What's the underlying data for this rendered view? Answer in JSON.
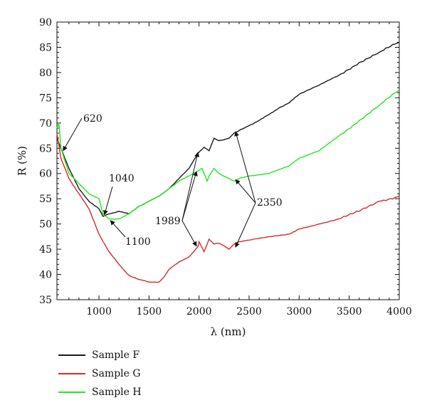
{
  "chart_data": {
    "type": "line",
    "xlabel": "λ (nm)",
    "ylabel": "R (%)",
    "xlim": [
      580,
      4000
    ],
    "ylim": [
      35,
      90
    ],
    "xticks": [
      "1000",
      "1500",
      "2000",
      "2500",
      "3000",
      "3500",
      "4000"
    ],
    "yticks": [
      "35",
      "40",
      "45",
      "50",
      "55",
      "60",
      "65",
      "70",
      "75",
      "80",
      "85",
      "90"
    ],
    "grid": false,
    "legend_position": "below",
    "series": [
      {
        "name": "Sample F",
        "color": "#1a1a1a",
        "x": [
          580,
          620,
          700,
          800,
          900,
          1000,
          1040,
          1100,
          1200,
          1300,
          1400,
          1500,
          1600,
          1700,
          1800,
          1900,
          1989,
          2050,
          2100,
          2150,
          2200,
          2300,
          2350,
          2400,
          2500,
          2600,
          2700,
          2800,
          2900,
          3000,
          3200,
          3400,
          3600,
          3800,
          4000
        ],
        "y": [
          67,
          65,
          61,
          57,
          54.5,
          53,
          51.5,
          52,
          52.5,
          52,
          53.5,
          54.5,
          55.5,
          57,
          59,
          61,
          64,
          65.2,
          64.5,
          67,
          66.5,
          67,
          68,
          68.5,
          69.5,
          70.5,
          71.7,
          73,
          74,
          75.7,
          77.5,
          79.5,
          82,
          84,
          86
        ]
      },
      {
        "name": "Sample G",
        "color": "#d42a2a",
        "x": [
          580,
          620,
          700,
          800,
          900,
          1000,
          1100,
          1200,
          1300,
          1400,
          1500,
          1600,
          1650,
          1700,
          1800,
          1900,
          1989,
          2000,
          2050,
          2100,
          2150,
          2200,
          2300,
          2350,
          2400,
          2500,
          2700,
          2900,
          3000,
          3200,
          3400,
          3600,
          3800,
          4000
        ],
        "y": [
          68,
          63,
          59,
          56,
          53,
          48,
          44.5,
          42,
          39.8,
          39,
          38.5,
          38.5,
          39.5,
          41,
          42.5,
          43.5,
          45.5,
          46.5,
          44.5,
          47,
          46,
          46.2,
          45,
          46,
          46.5,
          46.8,
          47.5,
          48,
          49,
          50,
          51,
          52.5,
          54.5,
          55.5
        ]
      },
      {
        "name": "Sample H",
        "color": "#22e622",
        "x": [
          580,
          600,
          620,
          700,
          800,
          900,
          1000,
          1040,
          1100,
          1200,
          1300,
          1400,
          1500,
          1600,
          1700,
          1800,
          1900,
          1989,
          2030,
          2080,
          2100,
          2150,
          2200,
          2300,
          2350,
          2400,
          2500,
          2700,
          2900,
          3000,
          3200,
          3400,
          3600,
          3800,
          4000
        ],
        "y": [
          69,
          70,
          65,
          60,
          58,
          56,
          55,
          52,
          51,
          51,
          52,
          53.5,
          54.5,
          55.5,
          57,
          58.5,
          59.5,
          60.5,
          61,
          58.5,
          59.5,
          61,
          60,
          59,
          58.5,
          59,
          59.5,
          60,
          61.5,
          63,
          64.5,
          67.5,
          70.5,
          73.5,
          76.5
        ]
      }
    ],
    "annotations": [
      {
        "text": "620",
        "x": 620
      },
      {
        "text": "1040",
        "x": 1040
      },
      {
        "text": "1100",
        "x": 1100
      },
      {
        "text": "1989",
        "x": 1989
      },
      {
        "text": "2350",
        "x": 2350
      }
    ]
  },
  "legend": {
    "items": [
      {
        "label": "Sample F",
        "color": "#1a1a1a"
      },
      {
        "label": "Sample G",
        "color": "#d42a2a"
      },
      {
        "label": "Sample H",
        "color": "#22e622"
      }
    ]
  }
}
